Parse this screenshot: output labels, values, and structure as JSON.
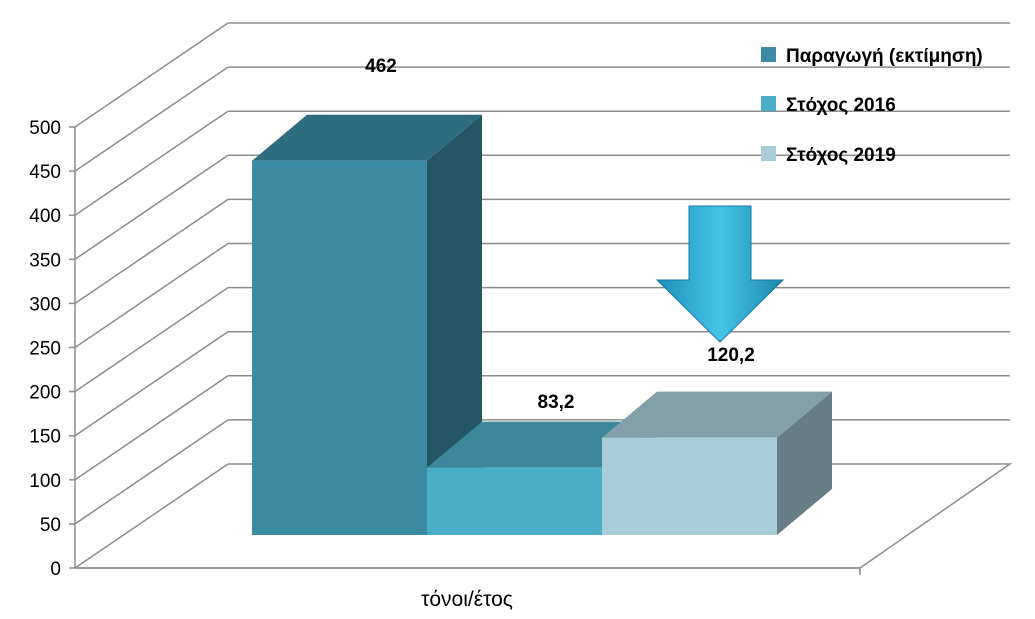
{
  "chart_data": {
    "type": "bar",
    "categories": [
      "τόνοι/έτος"
    ],
    "series": [
      {
        "name": "Παραγωγή (εκτίμηση)",
        "values": [
          462
        ],
        "color": "#3b8ba3"
      },
      {
        "name": "Στόχος 2016",
        "values": [
          83.2
        ],
        "color": "#4aaec6"
      },
      {
        "name": "Στόχος 2019",
        "values": [
          120.2
        ],
        "color": "#a8ccd9"
      }
    ],
    "data_labels": [
      "462",
      "83,2",
      "120,2"
    ],
    "y_ticks": [
      "0",
      "50",
      "100",
      "150",
      "200",
      "250",
      "300",
      "350",
      "400",
      "450",
      "500"
    ],
    "ylim": [
      0,
      500
    ],
    "grid": true,
    "legend_position": "top-right",
    "style": "3d-column",
    "annotation": {
      "type": "down-arrow",
      "color": "#35b5de"
    }
  }
}
